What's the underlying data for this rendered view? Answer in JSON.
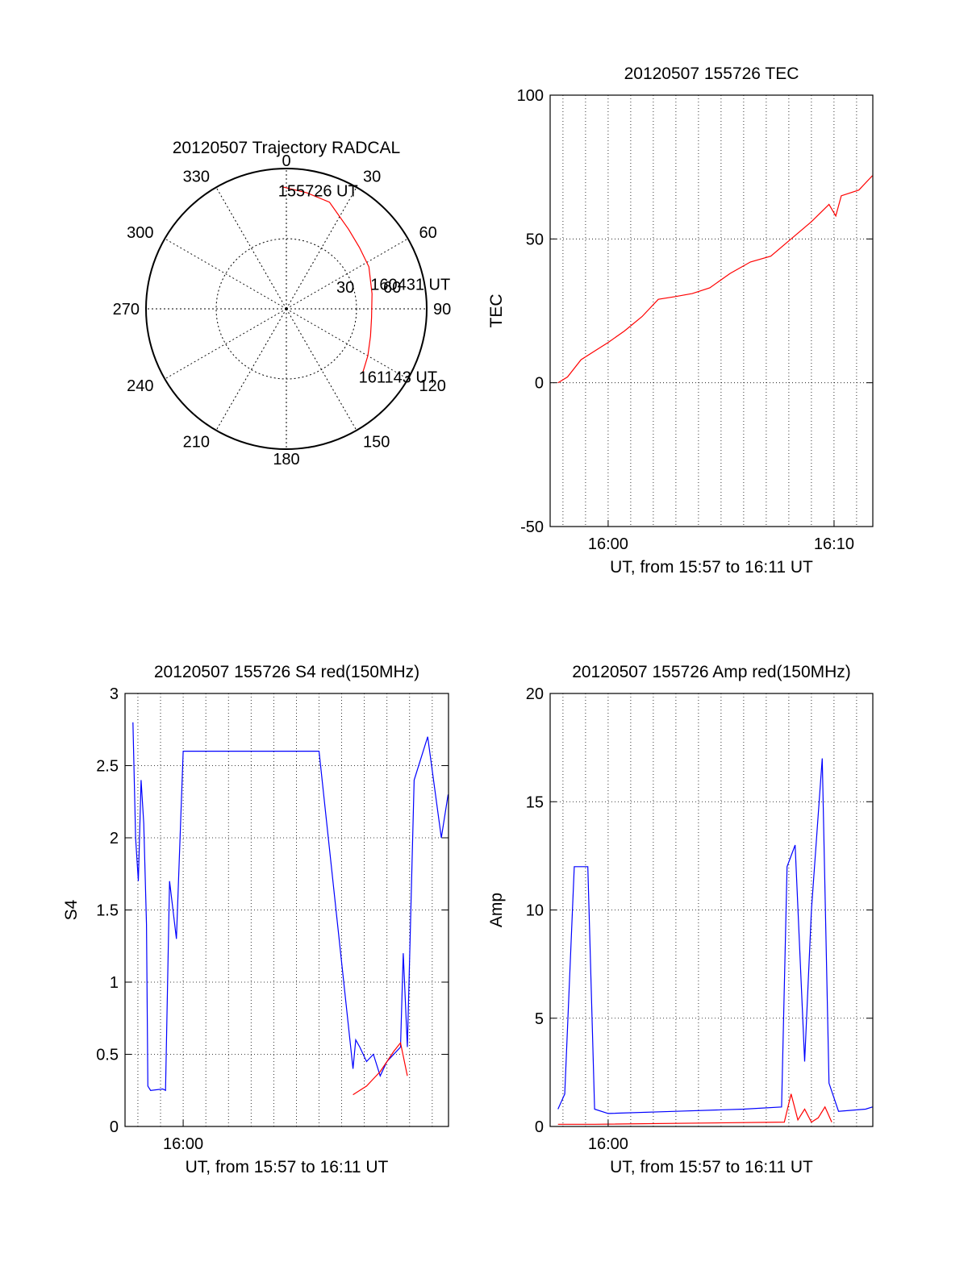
{
  "chart_data": [
    {
      "type": "polar",
      "title": "20120507 Trajectory RADCAL",
      "azimuth_ticks": [
        "0",
        "30",
        "60",
        "90",
        "120",
        "150",
        "180",
        "210",
        "240",
        "270",
        "300",
        "330"
      ],
      "ring_labels": [
        {
          "elevation": 60,
          "text": "30"
        },
        {
          "elevation": 30,
          "text": "60"
        }
      ],
      "trajectory_color": "#ff0000",
      "trajectory": [
        {
          "az": -2,
          "r": 0.87
        },
        {
          "az": 10,
          "r": 0.84
        },
        {
          "az": 22,
          "r": 0.82
        },
        {
          "az": 38,
          "r": 0.72
        },
        {
          "az": 50,
          "r": 0.68
        },
        {
          "az": 63,
          "r": 0.66
        },
        {
          "az": 80,
          "r": 0.62
        },
        {
          "az": 96,
          "r": 0.61
        },
        {
          "az": 108,
          "r": 0.63
        },
        {
          "az": 120,
          "r": 0.67
        },
        {
          "az": 130,
          "r": 0.71
        }
      ],
      "annotations": [
        {
          "text": "155726 UT",
          "az": -2,
          "r": 0.87
        },
        {
          "text": "160431 UT",
          "az": 72,
          "r": 0.66
        },
        {
          "text": "161143 UT",
          "az": 130,
          "r": 0.71
        }
      ]
    },
    {
      "type": "line",
      "title": "20120507 155726 TEC",
      "ylabel": "TEC",
      "xlabel": "UT, from 15:57 to 16:11 UT",
      "xlim": [
        15.9572,
        16.1953
      ],
      "ylim": [
        -50,
        100
      ],
      "yticks": [
        -50,
        0,
        50,
        100
      ],
      "xticks": [
        {
          "v": 16.0,
          "label": "16:00"
        },
        {
          "v": 16.1667,
          "label": "16:10"
        }
      ],
      "grid": true,
      "series": [
        {
          "color": "#ff0000",
          "x": [
            15.963,
            15.97,
            15.98,
            15.99,
            16.0,
            16.012,
            16.025,
            16.037,
            16.05,
            16.062,
            16.075,
            16.09,
            16.105,
            16.12,
            16.135,
            16.15,
            16.163,
            16.168,
            16.172,
            16.185,
            16.195
          ],
          "y": [
            0,
            2,
            8,
            11,
            14,
            18,
            23,
            29,
            30,
            31,
            33,
            38,
            42,
            44,
            50,
            56,
            62,
            58,
            65,
            67,
            72
          ]
        }
      ]
    },
    {
      "type": "line",
      "title": "20120507 155726 S4 red(150MHz)",
      "ylabel": "S4",
      "xlabel": "UT, from 15:57 to 16:11 UT",
      "xlim": [
        15.9572,
        16.1953
      ],
      "ylim": [
        0,
        3
      ],
      "yticks": [
        0,
        0.5,
        1,
        1.5,
        2,
        2.5,
        3
      ],
      "ytick_labels": [
        "0",
        "0.5",
        "1",
        "1.5",
        "2",
        "2.5",
        "3"
      ],
      "xticks": [
        {
          "v": 16.0,
          "label": "16:00"
        }
      ],
      "grid": true,
      "series": [
        {
          "color": "#0000ff",
          "x": [
            15.963,
            15.965,
            15.967,
            15.969,
            15.971,
            15.973,
            15.974,
            15.976,
            15.985,
            15.987,
            15.99,
            15.995,
            16.0,
            16.05,
            16.1,
            16.125,
            16.127,
            16.13,
            16.135,
            16.14,
            16.145,
            16.15,
            16.16,
            16.162,
            16.165,
            16.17,
            16.18,
            16.19,
            16.195
          ],
          "y": [
            2.8,
            2.0,
            1.7,
            2.4,
            2.1,
            1.4,
            0.28,
            0.25,
            0.26,
            0.25,
            1.7,
            1.3,
            2.6,
            2.6,
            2.6,
            0.4,
            0.6,
            0.55,
            0.45,
            0.5,
            0.35,
            0.45,
            0.55,
            1.2,
            0.55,
            2.4,
            2.7,
            2.0,
            2.3
          ]
        },
        {
          "color": "#ff0000",
          "x": [
            16.125,
            16.13,
            16.135,
            16.14,
            16.145,
            16.15,
            16.155,
            16.16,
            16.165
          ],
          "y": [
            0.22,
            0.25,
            0.28,
            0.33,
            0.38,
            0.45,
            0.52,
            0.58,
            0.35
          ]
        }
      ]
    },
    {
      "type": "line",
      "title": "20120507 155726 Amp red(150MHz)",
      "ylabel": "Amp",
      "xlabel": "UT, from 15:57 to 16:11 UT",
      "xlim": [
        15.9572,
        16.1953
      ],
      "ylim": [
        0,
        20
      ],
      "yticks": [
        0,
        5,
        10,
        15,
        20
      ],
      "xticks": [
        {
          "v": 16.0,
          "label": "16:00"
        }
      ],
      "grid": true,
      "series": [
        {
          "color": "#0000ff",
          "name": "",
          "x": [
            15.963,
            15.968,
            15.975,
            15.985,
            15.99,
            16.0,
            16.05,
            16.1,
            16.128,
            16.132,
            16.138,
            16.145,
            16.15,
            16.158,
            16.163,
            16.17,
            16.19,
            16.195
          ],
          "y": [
            0.8,
            1.5,
            12,
            12,
            0.8,
            0.6,
            0.7,
            0.8,
            0.9,
            12,
            13,
            3,
            10,
            17,
            2,
            0.7,
            0.8,
            0.9
          ]
        },
        {
          "color": "#ff0000",
          "name": "",
          "x": [
            15.963,
            15.99,
            16.13,
            16.135,
            16.14,
            16.145,
            16.15,
            16.155,
            16.16,
            16.165
          ],
          "y": [
            0.1,
            0.1,
            0.2,
            1.5,
            0.3,
            0.8,
            0.2,
            0.4,
            0.9,
            0.2
          ]
        }
      ]
    }
  ]
}
